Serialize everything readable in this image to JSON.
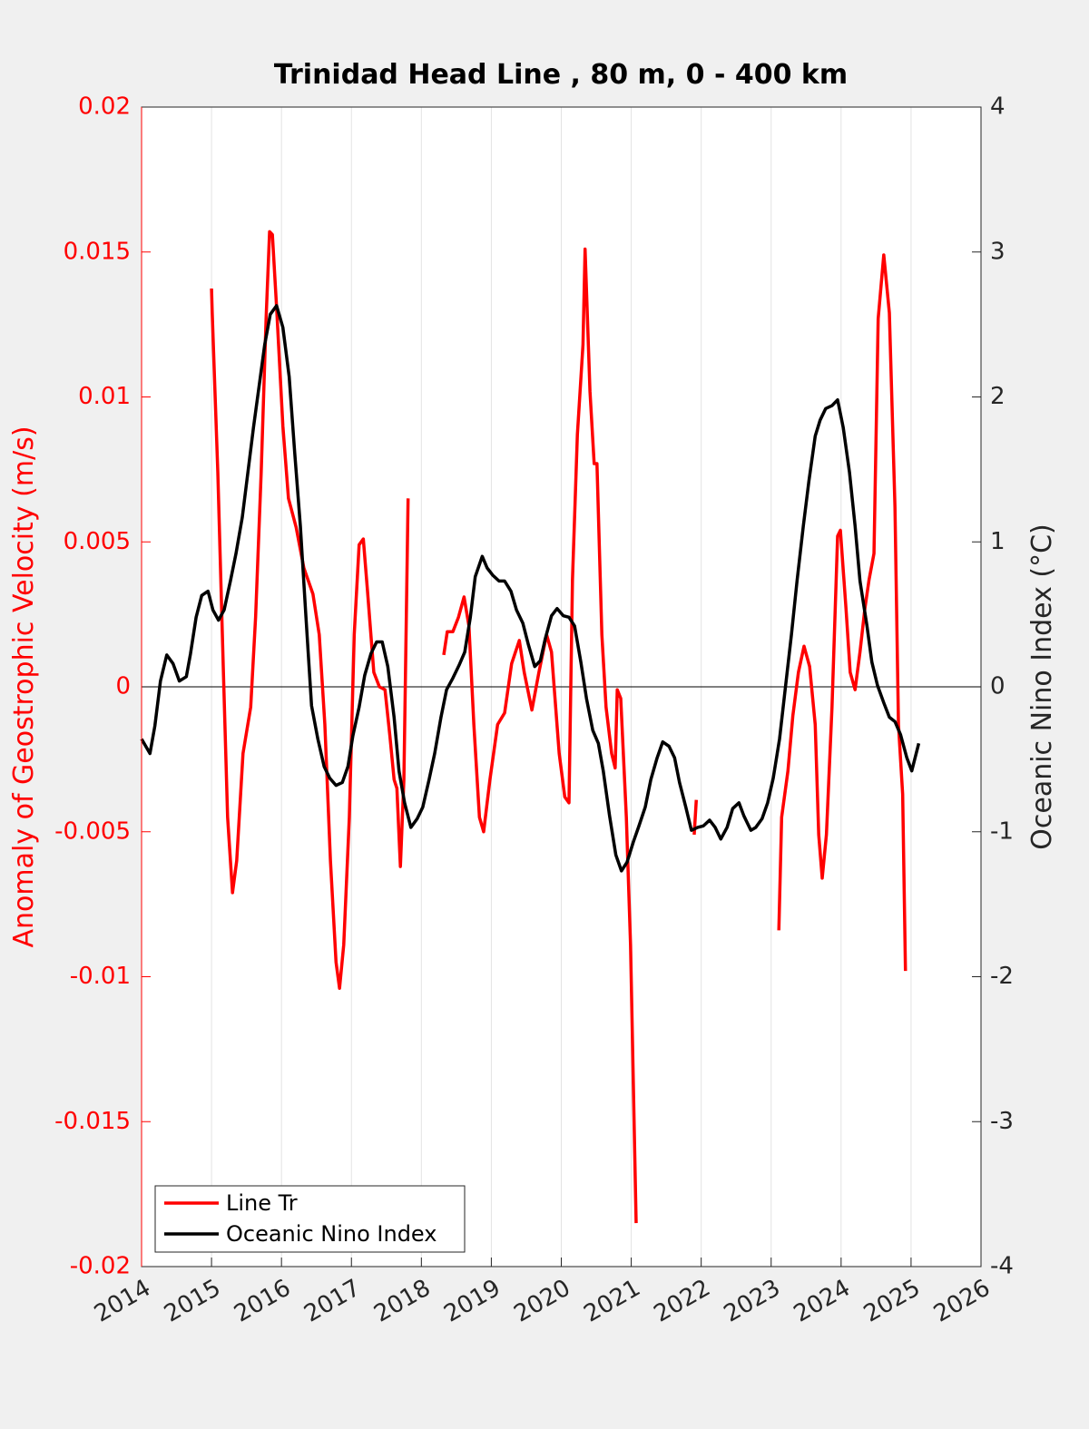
{
  "chart_data": {
    "type": "line",
    "title": "Trinidad Head Line , 80 m, 0 - 400 km",
    "ylabel": "Anomaly of Geostrophic Velocity (m/s)",
    "y2label": "Oceanic Nino Index (°C)",
    "ylabel_color": "#ff0000",
    "y2label_color": "#262626",
    "xlim": [
      2014,
      2026
    ],
    "xticks": [
      2014,
      2015,
      2016,
      2017,
      2018,
      2019,
      2020,
      2021,
      2022,
      2023,
      2024,
      2025,
      2026
    ],
    "ylim": [
      -0.02,
      0.02
    ],
    "yticks": [
      -0.02,
      -0.015,
      -0.01,
      -0.005,
      0,
      0.005,
      0.01,
      0.015,
      0.02
    ],
    "y2lim": [
      -4,
      4
    ],
    "y2ticks": [
      -4,
      -3,
      -2,
      -1,
      0,
      1,
      2,
      3,
      4
    ],
    "grid": "x",
    "legend": "lower left",
    "series": [
      {
        "name": "Line Tr",
        "color": "#ff0000",
        "x": [
          2015.0,
          2015.01,
          2015.09,
          2015.17,
          2015.23,
          2015.3,
          2015.36,
          2015.45,
          2015.56,
          2015.63,
          2015.71,
          2015.78,
          2015.83,
          2015.87,
          2015.93,
          2016.02,
          2016.1,
          2016.21,
          2016.32,
          2016.45,
          2016.54,
          2016.62,
          2016.7,
          2016.78,
          2016.83,
          2016.89,
          2016.97,
          2017.04,
          2017.11,
          2017.17,
          2017.23,
          2017.32,
          2017.4,
          2017.48,
          2017.55,
          2017.61,
          2017.65,
          2017.7,
          2017.75,
          2017.81,
          2018.1,
          2018.32,
          2018.37,
          2018.45,
          2018.53,
          2018.61,
          2018.68,
          2018.75,
          2018.83,
          2018.89,
          2018.98,
          2019.09,
          2019.19,
          2019.29,
          2019.4,
          2019.47,
          2019.58,
          2019.68,
          2019.79,
          2019.86,
          2019.97,
          2020.05,
          2020.11,
          2020.16,
          2020.23,
          2020.31,
          2020.34,
          2020.41,
          2020.47,
          2020.51,
          2020.58,
          2020.64,
          2020.72,
          2020.77,
          2020.8,
          2020.85,
          2020.93,
          2020.99,
          2021.07,
          2021.5,
          2021.9,
          2021.93,
          2022.5,
          2023.11,
          2023.15,
          2023.24,
          2023.31,
          2023.39,
          2023.47,
          2023.55,
          2023.63,
          2023.68,
          2023.73,
          2023.79,
          2023.87,
          2023.95,
          2023.99,
          2024.07,
          2024.13,
          2024.2,
          2024.27,
          2024.34,
          2024.4,
          2024.47,
          2024.53,
          2024.61,
          2024.69,
          2024.77,
          2024.82,
          2024.88,
          2024.92
        ],
        "values": [
          0.01374,
          0.0129,
          0.0074,
          0.0005,
          -0.0045,
          -0.0071,
          -0.006,
          -0.0023,
          -0.0007,
          0.0024,
          0.0074,
          0.0127,
          0.0157,
          0.0156,
          0.0131,
          0.009,
          0.0065,
          0.0055,
          0.0041,
          0.0032,
          0.0018,
          -0.0013,
          -0.006,
          -0.0095,
          -0.0104,
          -0.0089,
          -0.0045,
          0.0018,
          0.0049,
          0.0051,
          0.0033,
          0.0005,
          0.0,
          -0.0001,
          -0.0017,
          -0.0032,
          -0.0035,
          -0.0062,
          -0.0032,
          0.0065,
          null,
          0.0011,
          0.0019,
          0.0019,
          0.0024,
          0.0031,
          0.0021,
          -0.0013,
          -0.0045,
          -0.005,
          -0.0032,
          -0.0013,
          -0.0009,
          0.0008,
          0.0016,
          0.0005,
          -0.0008,
          0.0005,
          0.0018,
          0.0012,
          -0.0023,
          -0.0038,
          -0.004,
          0.0037,
          0.0087,
          0.0118,
          0.0151,
          0.0102,
          0.0077,
          0.0077,
          0.0018,
          -0.0007,
          -0.0023,
          -0.0028,
          -0.0001,
          -0.0004,
          -0.0045,
          -0.0089,
          -0.0185,
          null,
          -0.0051,
          -0.0039,
          null,
          -0.0084,
          -0.0045,
          -0.0029,
          -0.001,
          0.0005,
          0.0014,
          0.0007,
          -0.0013,
          -0.0051,
          -0.0066,
          -0.0051,
          -0.0007,
          0.0052,
          0.0054,
          0.0027,
          0.0005,
          -0.0001,
          0.0012,
          0.0027,
          0.0037,
          0.0046,
          0.0127,
          0.0149,
          0.0129,
          0.0062,
          -0.0013,
          -0.0037,
          -0.0098
        ]
      },
      {
        "name": "Oceanic Nino Index",
        "color": "#000000",
        "axis": "y2",
        "x": [
          2014.0,
          2014.12,
          2014.19,
          2014.27,
          2014.36,
          2014.45,
          2014.54,
          2014.64,
          2014.7,
          2014.78,
          2014.86,
          2014.95,
          2015.02,
          2015.1,
          2015.18,
          2015.27,
          2015.35,
          2015.44,
          2015.52,
          2015.6,
          2015.69,
          2015.76,
          2015.84,
          2015.93,
          2016.02,
          2016.11,
          2016.19,
          2016.27,
          2016.35,
          2016.43,
          2016.52,
          2016.61,
          2016.69,
          2016.78,
          2016.87,
          2016.95,
          2017.02,
          2017.11,
          2017.19,
          2017.28,
          2017.36,
          2017.44,
          2017.52,
          2017.61,
          2017.68,
          2017.76,
          2017.85,
          2017.94,
          2018.02,
          2018.11,
          2018.19,
          2018.28,
          2018.36,
          2018.45,
          2018.54,
          2018.62,
          2018.7,
          2018.77,
          2018.87,
          2018.94,
          2019.02,
          2019.11,
          2019.19,
          2019.28,
          2019.36,
          2019.45,
          2019.53,
          2019.62,
          2019.7,
          2019.77,
          2019.86,
          2019.94,
          2020.03,
          2020.11,
          2020.19,
          2020.28,
          2020.36,
          2020.45,
          2020.53,
          2020.6,
          2020.69,
          2020.78,
          2020.86,
          2020.94,
          2021.03,
          2021.11,
          2021.2,
          2021.28,
          2021.37,
          2021.45,
          2021.54,
          2021.62,
          2021.69,
          2021.78,
          2021.86,
          2021.95,
          2022.03,
          2022.12,
          2022.2,
          2022.28,
          2022.37,
          2022.45,
          2022.54,
          2022.61,
          2022.71,
          2022.78,
          2022.87,
          2022.95,
          2023.03,
          2023.12,
          2023.2,
          2023.29,
          2023.37,
          2023.46,
          2023.54,
          2023.63,
          2023.7,
          2023.78,
          2023.87,
          2023.95,
          2024.03,
          2024.12,
          2024.2,
          2024.27,
          2024.37,
          2024.44,
          2024.52,
          2024.61,
          2024.69,
          2024.77,
          2024.85,
          2024.94,
          2025.01,
          2025.11
        ],
        "values": [
          -0.36,
          -0.46,
          -0.27,
          0.04,
          0.22,
          0.16,
          0.04,
          0.07,
          0.23,
          0.48,
          0.63,
          0.66,
          0.53,
          0.46,
          0.53,
          0.73,
          0.92,
          1.17,
          1.48,
          1.79,
          2.11,
          2.36,
          2.57,
          2.63,
          2.48,
          2.14,
          1.61,
          1.11,
          0.48,
          -0.13,
          -0.36,
          -0.55,
          -0.63,
          -0.68,
          -0.66,
          -0.55,
          -0.34,
          -0.14,
          0.08,
          0.23,
          0.31,
          0.31,
          0.14,
          -0.21,
          -0.58,
          -0.8,
          -0.97,
          -0.91,
          -0.83,
          -0.64,
          -0.46,
          -0.21,
          -0.02,
          0.06,
          0.15,
          0.24,
          0.48,
          0.76,
          0.9,
          0.82,
          0.77,
          0.73,
          0.73,
          0.66,
          0.53,
          0.44,
          0.29,
          0.14,
          0.18,
          0.33,
          0.49,
          0.54,
          0.49,
          0.48,
          0.42,
          0.17,
          -0.08,
          -0.3,
          -0.39,
          -0.58,
          -0.89,
          -1.16,
          -1.27,
          -1.21,
          -1.07,
          -0.96,
          -0.83,
          -0.64,
          -0.49,
          -0.38,
          -0.41,
          -0.49,
          -0.66,
          -0.83,
          -0.99,
          -0.97,
          -0.96,
          -0.92,
          -0.97,
          -1.05,
          -0.97,
          -0.84,
          -0.8,
          -0.89,
          -0.99,
          -0.97,
          -0.91,
          -0.8,
          -0.63,
          -0.36,
          -0.02,
          0.36,
          0.73,
          1.11,
          1.42,
          1.73,
          1.84,
          1.92,
          1.94,
          1.98,
          1.79,
          1.48,
          1.11,
          0.73,
          0.42,
          0.17,
          0.01,
          -0.11,
          -0.21,
          -0.24,
          -0.33,
          -0.49,
          -0.58,
          -0.39
        ]
      }
    ]
  }
}
